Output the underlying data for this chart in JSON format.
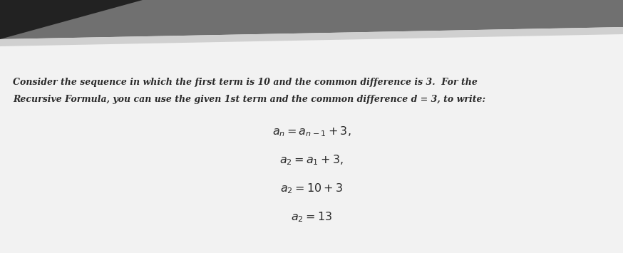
{
  "bg_top_color": "#3a3a3a",
  "bg_bottom_color": "#888888",
  "paper_color": "#f5f5f5",
  "text_color": "#2a2a2a",
  "intro_line1": "Consider the sequence in which the first term is 10 and the common difference is 3.  For the",
  "intro_line2": "Recursive Formula, you can use the given 1st term and the common difference d = 3, to write:",
  "eq1": "$a_n = a_{n-1} + 3,$",
  "eq2": "$a_2 = a_1 + 3,$",
  "eq3": "$a_2 = 10 + 3$",
  "eq4": "$a_2 = 13$",
  "figsize": [
    8.74,
    3.55
  ],
  "dpi": 100
}
